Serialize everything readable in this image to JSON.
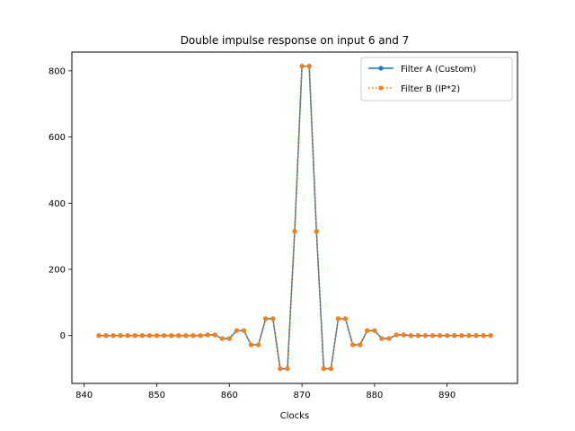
{
  "chart_data": {
    "type": "line",
    "title": "Double impulse response on input 6 and 7",
    "xlabel": "Clocks",
    "ylabel": "",
    "xlim": [
      838.3,
      899.7
    ],
    "ylim": [
      -144.5,
      856.6
    ],
    "xticks": [
      840,
      850,
      860,
      870,
      880,
      890
    ],
    "yticks": [
      0,
      200,
      400,
      600,
      800
    ],
    "grid": false,
    "legend_position": "top-right",
    "x": [
      842,
      843,
      844,
      845,
      846,
      847,
      848,
      849,
      850,
      851,
      852,
      853,
      854,
      855,
      856,
      857,
      858,
      859,
      860,
      861,
      862,
      863,
      864,
      865,
      866,
      867,
      868,
      869,
      870,
      871,
      872,
      873,
      874,
      875,
      876,
      877,
      878,
      879,
      880,
      881,
      882,
      883,
      884,
      885,
      886,
      887,
      888,
      889,
      890,
      891,
      892,
      893,
      894,
      895,
      896
    ],
    "series": [
      {
        "name": "Filter A (Custom)",
        "color": "#1f77b4",
        "linestyle": "solid",
        "marker": "dot",
        "values": [
          0,
          0,
          0,
          0,
          0,
          0,
          0,
          0,
          0,
          0,
          0,
          0,
          0,
          0,
          0,
          2,
          2,
          -9,
          -9,
          15,
          15,
          -28,
          -28,
          51,
          51,
          -100,
          -100,
          315,
          814,
          814,
          315,
          -100,
          -100,
          51,
          51,
          -28,
          -28,
          15,
          15,
          -9,
          -9,
          2,
          2,
          0,
          0,
          0,
          0,
          0,
          0,
          0,
          0,
          0,
          0,
          0,
          0
        ]
      },
      {
        "name": "Filter B (IP*2)",
        "color": "#ff7f0e",
        "linestyle": "dotted",
        "marker": "dot",
        "values": [
          0,
          0,
          0,
          0,
          0,
          0,
          0,
          0,
          0,
          0,
          0,
          0,
          0,
          0,
          0,
          2,
          2,
          -9,
          -9,
          15,
          15,
          -28,
          -28,
          51,
          51,
          -100,
          -100,
          315,
          814,
          814,
          315,
          -100,
          -100,
          51,
          51,
          -28,
          -28,
          15,
          15,
          -9,
          -9,
          2,
          2,
          0,
          0,
          0,
          0,
          0,
          0,
          0,
          0,
          0,
          0,
          0,
          0
        ]
      }
    ]
  }
}
